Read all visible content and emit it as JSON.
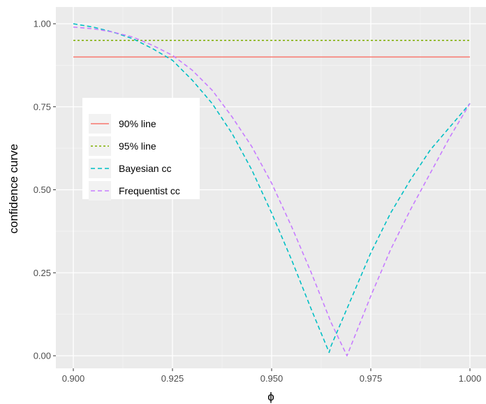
{
  "chart_data": {
    "type": "line",
    "xlabel": "ϕ",
    "ylabel": "confidence curve",
    "xlim": [
      0.9,
      1.0
    ],
    "ylim": [
      0.0,
      1.0
    ],
    "x_ticks": [
      "0.900",
      "0.925",
      "0.950",
      "0.975",
      "1.000"
    ],
    "y_ticks": [
      "0.00",
      "0.25",
      "0.50",
      "0.75",
      "1.00"
    ],
    "grid": true,
    "legend_position": "left",
    "series": [
      {
        "name": "90% line",
        "color": "#F8766D",
        "dash": "solid",
        "x": [
          0.9,
          1.0
        ],
        "y": [
          0.9,
          0.9
        ]
      },
      {
        "name": "95% line",
        "color": "#7CAE00",
        "dash": "dotted",
        "x": [
          0.9,
          1.0
        ],
        "y": [
          0.95,
          0.95
        ]
      },
      {
        "name": "Bayesian cc",
        "color": "#00BFC4",
        "dash": "dashed",
        "x": [
          0.9,
          0.905,
          0.91,
          0.915,
          0.92,
          0.925,
          0.93,
          0.935,
          0.94,
          0.945,
          0.95,
          0.955,
          0.96,
          0.9645,
          0.965,
          0.97,
          0.975,
          0.98,
          0.985,
          0.99,
          0.995,
          1.0
        ],
        "y": [
          1.0,
          0.99,
          0.975,
          0.955,
          0.925,
          0.89,
          0.83,
          0.76,
          0.67,
          0.56,
          0.43,
          0.29,
          0.14,
          0.01,
          0.03,
          0.17,
          0.31,
          0.43,
          0.53,
          0.62,
          0.69,
          0.76
        ]
      },
      {
        "name": "Frequentist cc",
        "color": "#C77CFF",
        "dash": "dashed",
        "x": [
          0.9,
          0.905,
          0.91,
          0.915,
          0.92,
          0.925,
          0.93,
          0.935,
          0.94,
          0.945,
          0.95,
          0.955,
          0.96,
          0.965,
          0.969,
          0.975,
          0.98,
          0.985,
          0.99,
          0.995,
          1.0
        ],
        "y": [
          0.99,
          0.985,
          0.975,
          0.96,
          0.935,
          0.905,
          0.86,
          0.8,
          0.72,
          0.63,
          0.52,
          0.39,
          0.25,
          0.1,
          0.0,
          0.18,
          0.32,
          0.44,
          0.55,
          0.66,
          0.76
        ]
      }
    ]
  }
}
